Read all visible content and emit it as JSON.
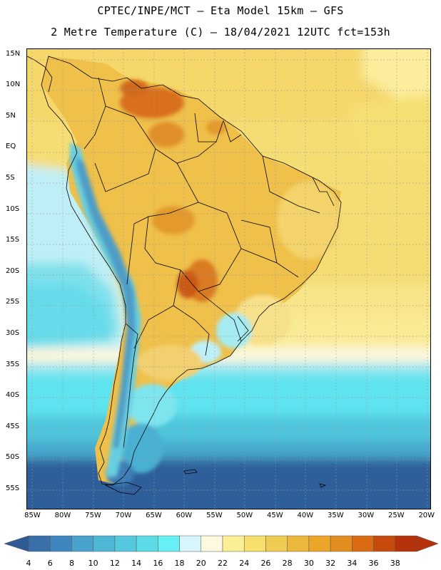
{
  "title": {
    "line1": "CPTEC/INPE/MCT –  Eta Model 15km – GFS",
    "line2": "2 Metre Temperature (C) – 18/04/2021 12UTC fct=153h"
  },
  "map": {
    "lat_labels": [
      "15N",
      "10N",
      "5N",
      "EQ",
      "5S",
      "10S",
      "15S",
      "20S",
      "25S",
      "30S",
      "35S",
      "40S",
      "45S",
      "50S",
      "55S"
    ],
    "lon_labels": [
      "85W",
      "80W",
      "75W",
      "70W",
      "65W",
      "60W",
      "55W",
      "50W",
      "45W",
      "40W",
      "35W",
      "30W",
      "25W",
      "20W"
    ],
    "extent": {
      "lon_min": -86,
      "lon_max": -19.5,
      "lat_min": -58,
      "lat_max": 16
    },
    "gridlines": "dotted"
  },
  "colorbar": {
    "labels": [
      "4",
      "6",
      "8",
      "10",
      "12",
      "14",
      "16",
      "18",
      "20",
      "22",
      "24",
      "26",
      "28",
      "30",
      "32",
      "34",
      "36",
      "38"
    ],
    "colors": [
      "#3a6faa",
      "#3f86be",
      "#49a2cc",
      "#4fb6d6",
      "#55c8de",
      "#5bdbe6",
      "#66f0f5",
      "#d6f6fb",
      "#fdf8e0",
      "#fbef96",
      "#f6df6a",
      "#f0cb52",
      "#ecb83c",
      "#eba529",
      "#e38c1f",
      "#da6b13",
      "#c64a0c",
      "#b5320a"
    ],
    "under_color": "#2f5b95",
    "over_color": "#b5320a"
  }
}
